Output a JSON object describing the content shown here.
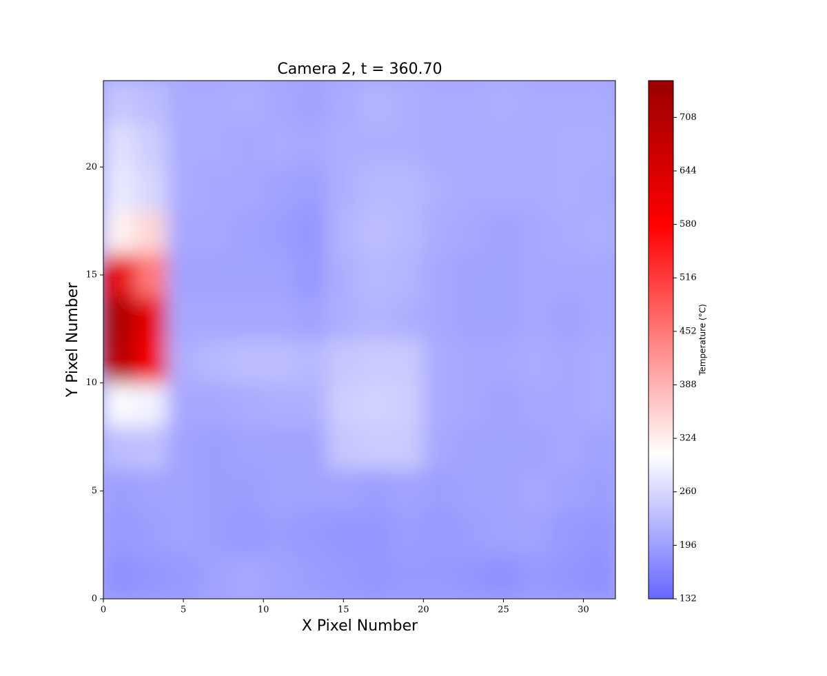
{
  "chart_data": {
    "type": "heatmap",
    "title": "Camera 2, t = 360.70",
    "x_label": "X Pixel Number",
    "y_label": "Y Pixel Number",
    "colorbar_label": "Temperature (°C)",
    "x": [
      1,
      3,
      5,
      7,
      9,
      11,
      13,
      15,
      17,
      19,
      21,
      23,
      25,
      27,
      29,
      31
    ],
    "y": [
      1,
      3,
      5,
      7,
      9,
      11,
      13,
      15,
      17,
      19,
      21,
      23
    ],
    "z": [
      [
        180,
        185,
        190,
        200,
        205,
        200,
        195,
        190,
        185,
        190,
        190,
        185,
        180,
        190,
        185,
        180
      ],
      [
        190,
        195,
        200,
        195,
        190,
        195,
        190,
        185,
        185,
        195,
        190,
        195,
        200,
        200,
        190,
        185
      ],
      [
        195,
        200,
        200,
        195,
        195,
        200,
        200,
        200,
        195,
        200,
        195,
        200,
        200,
        205,
        200,
        195
      ],
      [
        230,
        235,
        200,
        195,
        200,
        200,
        200,
        240,
        245,
        245,
        205,
        200,
        200,
        200,
        205,
        200
      ],
      [
        300,
        290,
        205,
        205,
        210,
        215,
        215,
        250,
        255,
        250,
        210,
        205,
        200,
        205,
        205,
        210
      ],
      [
        700,
        600,
        215,
        225,
        230,
        230,
        225,
        240,
        245,
        245,
        210,
        205,
        205,
        210,
        205,
        210
      ],
      [
        720,
        620,
        205,
        205,
        205,
        205,
        200,
        215,
        220,
        215,
        205,
        200,
        200,
        205,
        200,
        205
      ],
      [
        620,
        450,
        200,
        200,
        200,
        200,
        190,
        215,
        225,
        220,
        205,
        200,
        200,
        205,
        205,
        205
      ],
      [
        320,
        350,
        205,
        205,
        200,
        195,
        185,
        220,
        230,
        225,
        210,
        205,
        200,
        205,
        210,
        215
      ],
      [
        280,
        260,
        210,
        205,
        205,
        200,
        195,
        215,
        225,
        225,
        215,
        210,
        210,
        210,
        215,
        210
      ],
      [
        270,
        250,
        210,
        210,
        205,
        210,
        205,
        215,
        215,
        215,
        210,
        210,
        210,
        210,
        215,
        215
      ],
      [
        240,
        230,
        210,
        210,
        215,
        205,
        200,
        210,
        220,
        215,
        210,
        210,
        215,
        210,
        210,
        210
      ]
    ],
    "xlim": [
      0,
      32
    ],
    "ylim": [
      0,
      24
    ],
    "xticks": [
      0,
      5,
      10,
      15,
      20,
      25,
      30
    ],
    "yticks": [
      0,
      5,
      10,
      15,
      20
    ],
    "clim": [
      132,
      752
    ],
    "cticks": [
      132,
      196,
      260,
      324,
      388,
      452,
      516,
      580,
      644,
      708
    ],
    "colormap": [
      {
        "value": 132,
        "color": "#6666ff"
      },
      {
        "value": 305,
        "color": "#ffffff"
      },
      {
        "value": 580,
        "color": "#ff0000"
      },
      {
        "value": 752,
        "color": "#990000"
      }
    ]
  }
}
